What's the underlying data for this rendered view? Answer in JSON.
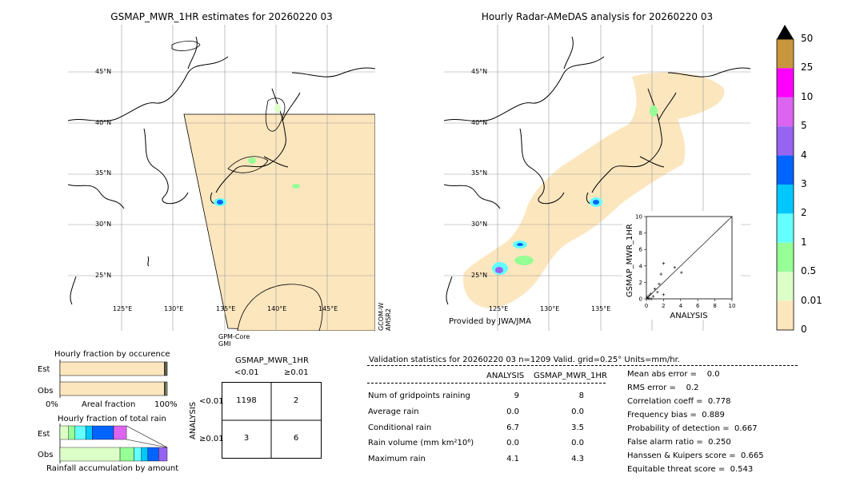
{
  "left_map": {
    "title": "GSMAP_MWR_1HR estimates for 20260220 03",
    "lat_labels": [
      "45°N",
      "40°N",
      "35°N",
      "30°N",
      "25°N"
    ],
    "lon_labels": [
      "125°E",
      "130°E",
      "135°E",
      "140°E",
      "145°E"
    ],
    "sat_bottom": "GPM-Core\nGMI",
    "sat_right": "GCOM-W\nAMSR2"
  },
  "right_map": {
    "title": "Hourly Radar-AMeDAS analysis for 20260220 03",
    "lat_labels": [
      "45°N",
      "40°N",
      "35°N",
      "30°N",
      "25°N"
    ],
    "lon_labels": [
      "125°E",
      "130°E",
      "135°E"
    ],
    "provider": "Provided by JWA/JMA"
  },
  "colorbar": {
    "labels": [
      "50",
      "25",
      "10",
      "5",
      "4",
      "3",
      "2",
      "1",
      "0.5",
      "0.01",
      "0"
    ],
    "colors": [
      "#c8963c",
      "#ff00ff",
      "#dc64f0",
      "#9664f0",
      "#0064ff",
      "#00c8ff",
      "#64ffff",
      "#96ff96",
      "#dcffc8",
      "#fce6be"
    ],
    "top_color": "#000000"
  },
  "occurrence_panel": {
    "title": "Hourly fraction by occurence",
    "row_labels": [
      "Est",
      "Obs"
    ],
    "axis_labels": [
      "0%",
      "Areal fraction",
      "100%"
    ]
  },
  "amount_panel": {
    "title": "Hourly fraction of total rain",
    "row_labels": [
      "Est",
      "Obs"
    ],
    "xlabel": "Rainfall accumulation by amount"
  },
  "contingency": {
    "title": "GSMAP_MWR_1HR",
    "col_labels": [
      "<0.01",
      "≥0.01"
    ],
    "row_title": "ANALYSIS",
    "row_labels": [
      "<0.01",
      "≥0.01"
    ],
    "cells": [
      [
        "1198",
        "2"
      ],
      [
        "3",
        "6"
      ]
    ]
  },
  "validation": {
    "header": "Validation statistics for 20260220 03  n=1209 Valid. grid=0.25° Units=mm/hr.",
    "col_analysis": "ANALYSIS",
    "col_gsmap": "GSMAP_MWR_1HR",
    "rows": [
      {
        "label": "Num of gridpoints raining",
        "analysis": "9",
        "gsmap": "8"
      },
      {
        "label": "Average rain",
        "analysis": "0.0",
        "gsmap": "0.0"
      },
      {
        "label": "Conditional rain",
        "analysis": "6.7",
        "gsmap": "3.5"
      },
      {
        "label": "Rain volume (mm km²10⁶)",
        "analysis": "0.0",
        "gsmap": "0.0"
      },
      {
        "label": "Maximum rain",
        "analysis": "4.1",
        "gsmap": "4.3"
      }
    ],
    "scores": [
      "Mean abs error =    0.0",
      "RMS error =    0.2",
      "Correlation coeff =  0.778",
      "Frequency bias =  0.889",
      "Probability of detection =  0.667",
      "False alarm ratio =  0.250",
      "Hanssen & Kuipers score =  0.665",
      "Equitable threat score =  0.543"
    ]
  },
  "chart_data": [
    {
      "type": "scatter",
      "xlabel": "ANALYSIS",
      "ylabel": "GSMAP_MWR_1HR",
      "xlim": [
        0,
        10
      ],
      "ylim": [
        0,
        10
      ],
      "ticks": [
        0,
        2,
        4,
        6,
        8,
        10
      ],
      "points": [
        {
          "x": 0.1,
          "y": 0.2
        },
        {
          "x": 0.2,
          "y": 0.1
        },
        {
          "x": 0.3,
          "y": 0.4
        },
        {
          "x": 0.5,
          "y": 0.6
        },
        {
          "x": 0.8,
          "y": 0.3
        },
        {
          "x": 1.0,
          "y": 1.2
        },
        {
          "x": 1.3,
          "y": 0.8
        },
        {
          "x": 1.5,
          "y": 1.8
        },
        {
          "x": 1.7,
          "y": 3.0
        },
        {
          "x": 2.0,
          "y": 4.3
        },
        {
          "x": 3.3,
          "y": 3.8
        },
        {
          "x": 4.1,
          "y": 3.2
        },
        {
          "x": 0.2,
          "y": 0.0
        },
        {
          "x": 0.4,
          "y": 0.0
        },
        {
          "x": 0.6,
          "y": 0.0
        },
        {
          "x": 2.0,
          "y": 0.5
        }
      ]
    },
    {
      "type": "bar",
      "title": "Hourly fraction by occurence",
      "categories": [
        "Est",
        "Obs"
      ],
      "series": [
        {
          "color": "#fce6be",
          "values": [
            0.992,
            0.993
          ]
        },
        {
          "color": "#dcffc8",
          "values": [
            0.002,
            0.0
          ]
        },
        {
          "color": "#96ff96",
          "values": [
            0.006,
            0.007
          ]
        }
      ]
    },
    {
      "type": "bar",
      "title": "Hourly fraction of total rain",
      "categories": [
        "Est",
        "Obs"
      ],
      "series": [
        {
          "color": "#dcffc8",
          "values": [
            0.08,
            0.56
          ]
        },
        {
          "color": "#96ff96",
          "values": [
            0.06,
            0.13
          ]
        },
        {
          "color": "#64ffff",
          "values": [
            0.1,
            0.07
          ]
        },
        {
          "color": "#00c8ff",
          "values": [
            0.06,
            0.06
          ]
        },
        {
          "color": "#0064ff",
          "values": [
            0.2,
            0.1
          ]
        },
        {
          "color": "#9664f0",
          "values": [
            0.0,
            0.08
          ]
        },
        {
          "color": "#dc64f0",
          "values": [
            0.12,
            0.0
          ]
        }
      ]
    }
  ]
}
